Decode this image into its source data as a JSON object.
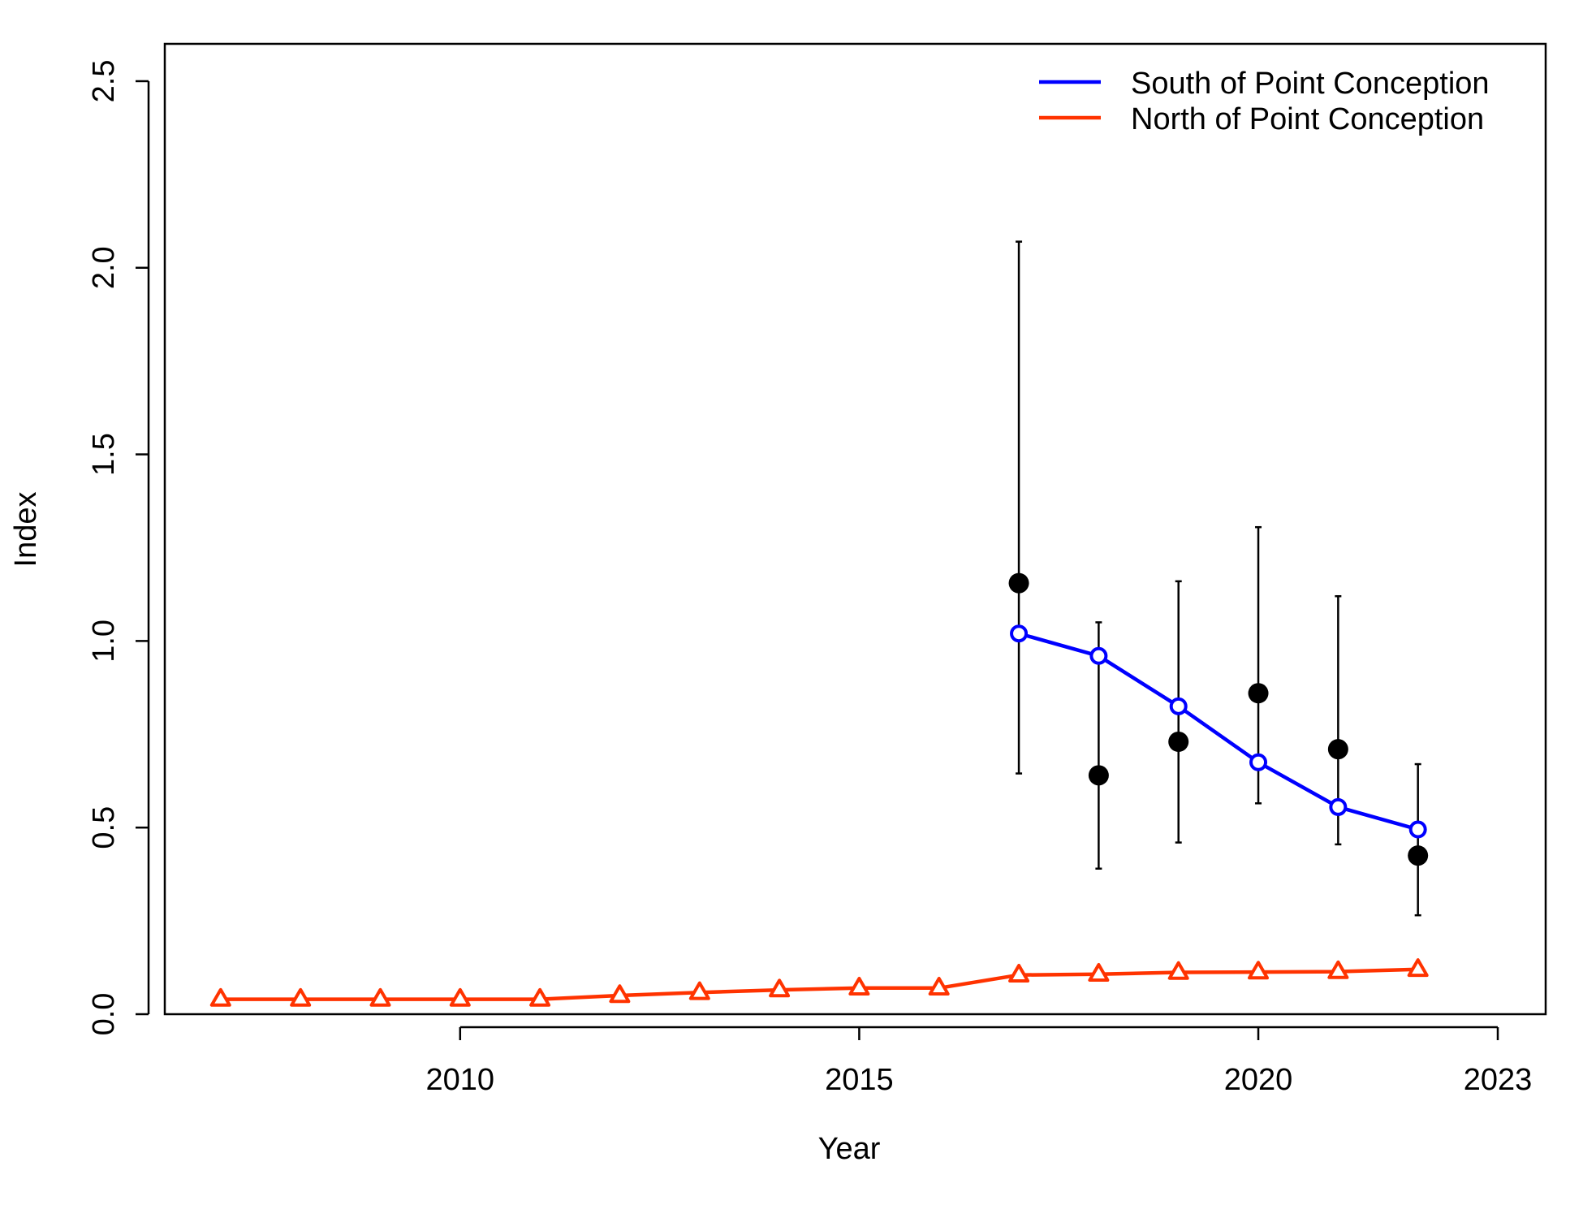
{
  "chart_data": {
    "type": "line",
    "title": "",
    "xlabel": "Year",
    "ylabel": "Index",
    "xlim": [
      2006.3,
      2023.6
    ],
    "ylim": [
      0,
      2.6
    ],
    "xticks": [
      2010,
      2015,
      2020,
      2023
    ],
    "yticks": [
      0.0,
      0.5,
      1.0,
      1.5,
      2.0,
      2.5
    ],
    "ytick_labels": [
      "0.0",
      "0.5",
      "1.0",
      "1.5",
      "2.0",
      "2.5"
    ],
    "legend_position": "top-right",
    "grid": false,
    "observations": {
      "x": [
        2017,
        2018,
        2019,
        2020,
        2021,
        2022
      ],
      "y": [
        1.155,
        0.64,
        0.73,
        0.86,
        0.71,
        0.425
      ],
      "lower": [
        0.645,
        0.39,
        0.46,
        0.565,
        0.455,
        0.265
      ],
      "upper": [
        2.07,
        1.05,
        1.16,
        1.305,
        1.12,
        0.67
      ],
      "color": "#000000"
    },
    "series": [
      {
        "name": "South of Point Conception",
        "color": "#0000ff",
        "marker": "circle",
        "x": [
          2017,
          2018,
          2019,
          2020,
          2021,
          2022
        ],
        "y": [
          1.02,
          0.96,
          0.825,
          0.675,
          0.555,
          0.495
        ]
      },
      {
        "name": "North of Point Conception",
        "color": "#ff3300",
        "marker": "triangle",
        "x": [
          2007,
          2008,
          2009,
          2010,
          2011,
          2012,
          2013,
          2014,
          2015,
          2016,
          2017,
          2018,
          2019,
          2020,
          2021,
          2022
        ],
        "y": [
          0.04,
          0.04,
          0.04,
          0.04,
          0.04,
          0.05,
          0.058,
          0.065,
          0.07,
          0.07,
          0.105,
          0.107,
          0.112,
          0.113,
          0.114,
          0.12
        ]
      }
    ]
  }
}
